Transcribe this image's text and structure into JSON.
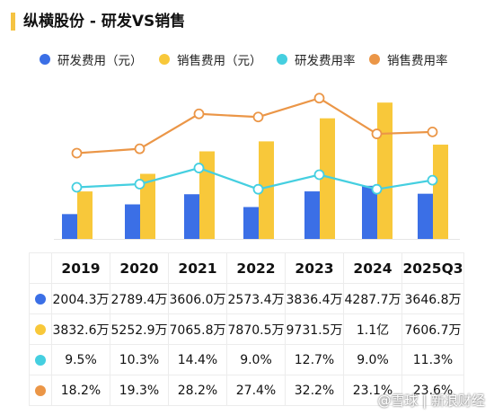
{
  "title": "纵横股份 - 研发VS销售",
  "watermark": "@雪球 | 新浪财经",
  "colors": {
    "rd": "#3b6fe6",
    "sales": "#f8c83a",
    "rd_rate": "#45cfe0",
    "sales_rate": "#eb9647"
  },
  "legend": [
    "研发费用（元）",
    "销售费用（元）",
    "研发费用率",
    "销售费用率"
  ],
  "table": {
    "rows": [
      [
        "2004.3万",
        "2789.4万",
        "3606.0万",
        "2573.4万",
        "3836.4万",
        "4287.7万",
        "3646.8万"
      ],
      [
        "3832.6万",
        "5252.9万",
        "7065.8万",
        "7870.5万",
        "9731.5万",
        "1.1亿",
        "7606.7万"
      ],
      [
        "9.5%",
        "10.3%",
        "14.4%",
        "9.0%",
        "12.7%",
        "9.0%",
        "11.3%"
      ],
      [
        "18.2%",
        "19.3%",
        "28.2%",
        "27.4%",
        "32.2%",
        "23.1%",
        "23.6%"
      ]
    ]
  },
  "chart_data": {
    "type": "bar",
    "categories": [
      "2019",
      "2020",
      "2021",
      "2022",
      "2023",
      "2024",
      "2025Q3"
    ],
    "series": [
      {
        "name": "研发费用（元）",
        "type": "bar",
        "unit": "万元",
        "values": [
          2004.3,
          2789.4,
          3606.0,
          2573.4,
          3836.4,
          4287.7,
          3646.8
        ]
      },
      {
        "name": "销售费用（元）",
        "type": "bar",
        "unit": "万元",
        "values": [
          3832.6,
          5252.9,
          7065.8,
          7870.5,
          9731.5,
          11000,
          7606.7
        ]
      },
      {
        "name": "研发费用率",
        "type": "line",
        "unit": "%",
        "values": [
          9.5,
          10.3,
          14.4,
          9.0,
          12.7,
          9.0,
          11.3
        ]
      },
      {
        "name": "销售费用率",
        "type": "line",
        "unit": "%",
        "values": [
          18.2,
          19.3,
          28.2,
          27.4,
          32.2,
          23.1,
          23.6
        ]
      }
    ],
    "legend_position": "top",
    "grid": false
  }
}
